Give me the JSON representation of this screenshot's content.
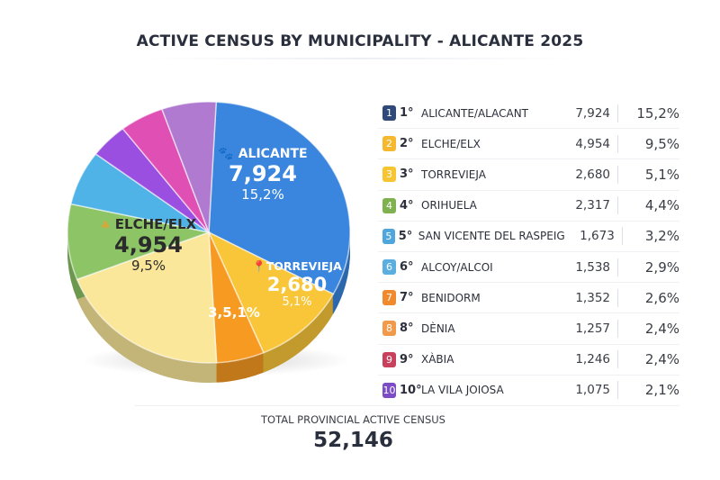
{
  "title": "ACTIVE CENSUS BY MUNICIPALITY - ALICANTE 2025",
  "chart_data": {
    "type": "pie",
    "title": "ACTIVE CENSUS BY MUNICIPALITY - ALICANTE 2025",
    "rows": [
      {
        "badge": "1",
        "rank": "1°",
        "name": "ALICANTE/ALACANT",
        "value": 7924,
        "value_label": "7,924",
        "pct": "15,2%",
        "color": "#2f4a78"
      },
      {
        "badge": "2",
        "rank": "2°",
        "name": "ELCHE/ELX",
        "value": 4954,
        "value_label": "4,954",
        "pct": "9,5%",
        "color": "#f5b82e"
      },
      {
        "badge": "3",
        "rank": "3°",
        "name": "TORREVIEJA",
        "value": 2680,
        "value_label": "2,680",
        "pct": "5,1%",
        "color": "#f7c531"
      },
      {
        "badge": "4",
        "rank": "4°",
        "name": "ORIHUELA",
        "value": 2317,
        "value_label": "2,317",
        "pct": "4,4%",
        "color": "#7fb24e"
      },
      {
        "badge": "5",
        "rank": "5°",
        "name": "SAN VICENTE DEL RASPEIG",
        "value": 1673,
        "value_label": "1,673",
        "pct": "3,2%",
        "color": "#4ea6dc"
      },
      {
        "badge": "6",
        "rank": "6°",
        "name": "ALCOY/ALCOI",
        "value": 1538,
        "value_label": "1,538",
        "pct": "2,9%",
        "color": "#5aaee0"
      },
      {
        "badge": "7",
        "rank": "7°",
        "name": "BENIDORM",
        "value": 1352,
        "value_label": "1,352",
        "pct": "2,6%",
        "color": "#f08a2c"
      },
      {
        "badge": "8",
        "rank": "8°",
        "name": "DÈNIA",
        "value": 1257,
        "value_label": "1,257",
        "pct": "2,4%",
        "color": "#f09a4a"
      },
      {
        "badge": "9",
        "rank": "9°",
        "name": "XÀBIA",
        "value": 1246,
        "value_label": "1,246",
        "pct": "2,4%",
        "color": "#c8405c"
      },
      {
        "badge": "10",
        "rank": "10°",
        "name": "LA VILA JOIOSA",
        "value": 1075,
        "value_label": "1,075",
        "pct": "2,1%",
        "color": "#7b4cc4"
      }
    ],
    "pie_slices": [
      {
        "name": "ALICANTE/ALACANT",
        "value": 7924,
        "color": "#3a86de"
      },
      {
        "name": "TORREVIEJA",
        "value": 2680,
        "color": "#f9c63a"
      },
      {
        "name": "BENIDORM",
        "value": 1352,
        "color": "#f79a22"
      },
      {
        "name": "ELCHE/ELX",
        "value": 4954,
        "color": "#fbe79a"
      },
      {
        "name": "ORIHUELA",
        "value": 2317,
        "color": "#8cc466"
      },
      {
        "name": "SAN VICENTE DEL RASPEIG",
        "value": 1673,
        "color": "#4fb3e8"
      },
      {
        "name": "LA VILA JOIOSA",
        "value": 1075,
        "color": "#9b4fe0"
      },
      {
        "name": "XÀBIA",
        "value": 1246,
        "color": "#e04fb4"
      },
      {
        "name": "ALCOY/ALCOI",
        "value": 1538,
        "color": "#b07ad0"
      }
    ],
    "pie_labels": {
      "alicante": {
        "name": "ALICANTE",
        "value": "7,924",
        "pct": "15,2%"
      },
      "elche": {
        "name": "ELCHE/ELX",
        "value": "4,954",
        "pct": "9,5%"
      },
      "torrevieja": {
        "name": "TORREVIEJA",
        "value": "2,680",
        "pct": "5,1%"
      },
      "orange": {
        "pct": "3,5,1%"
      }
    }
  },
  "total": {
    "label": "TOTAL PROVINCIAL ACTIVE CENSUS",
    "value": "52,146"
  }
}
